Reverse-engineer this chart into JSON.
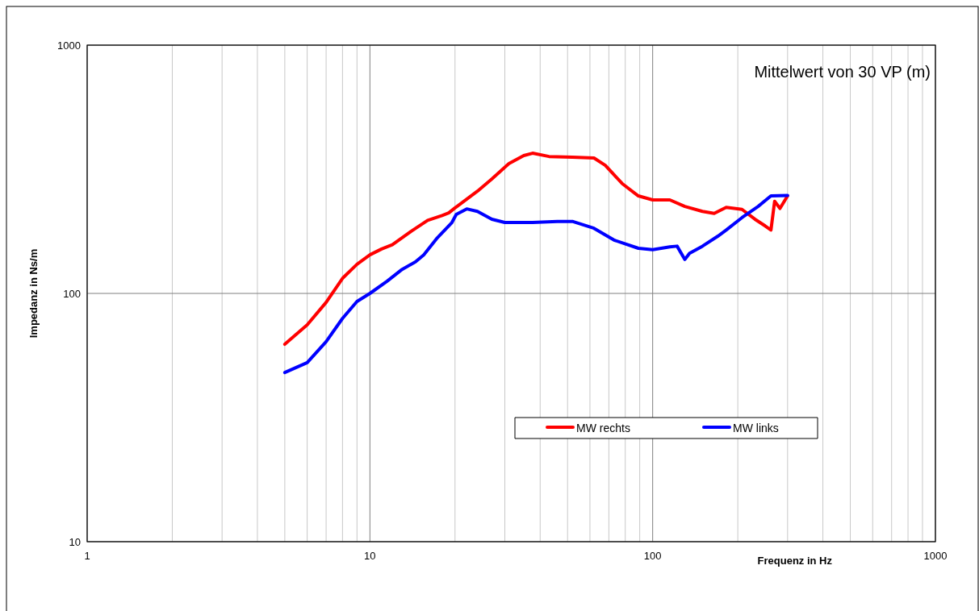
{
  "chart_data": {
    "type": "line",
    "xlabel": "Frequenz in Hz",
    "ylabel": "Impedanz in Ns/m",
    "annotations": [
      "Mittelwert von 30 VP (m)"
    ],
    "log": "xy",
    "grid": true,
    "legend": "bottom",
    "line_style": "solid",
    "marker": "none",
    "xlim": [
      1,
      1000
    ],
    "xticks": [
      1,
      10,
      100,
      1000
    ],
    "ylim": [
      10,
      1000
    ],
    "yticks": [
      10,
      100,
      1000
    ],
    "series": [
      {
        "name": "MW rechts",
        "color": "#ff0000",
        "x": [
          5,
          6,
          7,
          8,
          9,
          10,
          11,
          12,
          14,
          16,
          18,
          19,
          20,
          24,
          27,
          31,
          35,
          37.6,
          43,
          52,
          62,
          68,
          78,
          89,
          100,
          115,
          130,
          150,
          165,
          182,
          207,
          230,
          250,
          262,
          270,
          282,
          300
        ],
        "values": [
          62.4,
          74.7,
          92,
          115,
          131,
          143,
          151,
          157,
          178,
          197,
          206,
          211,
          221,
          258,
          289,
          333,
          359,
          367,
          356,
          354,
          351,
          328,
          277,
          247,
          238,
          238,
          224,
          214,
          210,
          222,
          218,
          199,
          187,
          180,
          235,
          220,
          247
        ]
      },
      {
        "name": "MW links",
        "color": "#0000ff",
        "x": [
          5,
          6,
          7,
          8,
          9,
          10,
          11.5,
          13,
          14.5,
          15.5,
          17.2,
          19.5,
          20.2,
          22,
          24,
          27,
          30,
          37.6,
          46,
          52,
          62,
          73,
          89,
          100,
          115,
          122,
          130,
          135,
          150,
          170,
          182,
          207,
          236,
          262,
          300
        ],
        "values": [
          48,
          52.6,
          63.9,
          79.3,
          92.8,
          100,
          112,
          125,
          134,
          143,
          166,
          193,
          208,
          219,
          214,
          199,
          193,
          193,
          195,
          195,
          183,
          164,
          152,
          150,
          154,
          155,
          137,
          145,
          155,
          170,
          180,
          202,
          224,
          247,
          248
        ]
      }
    ]
  }
}
